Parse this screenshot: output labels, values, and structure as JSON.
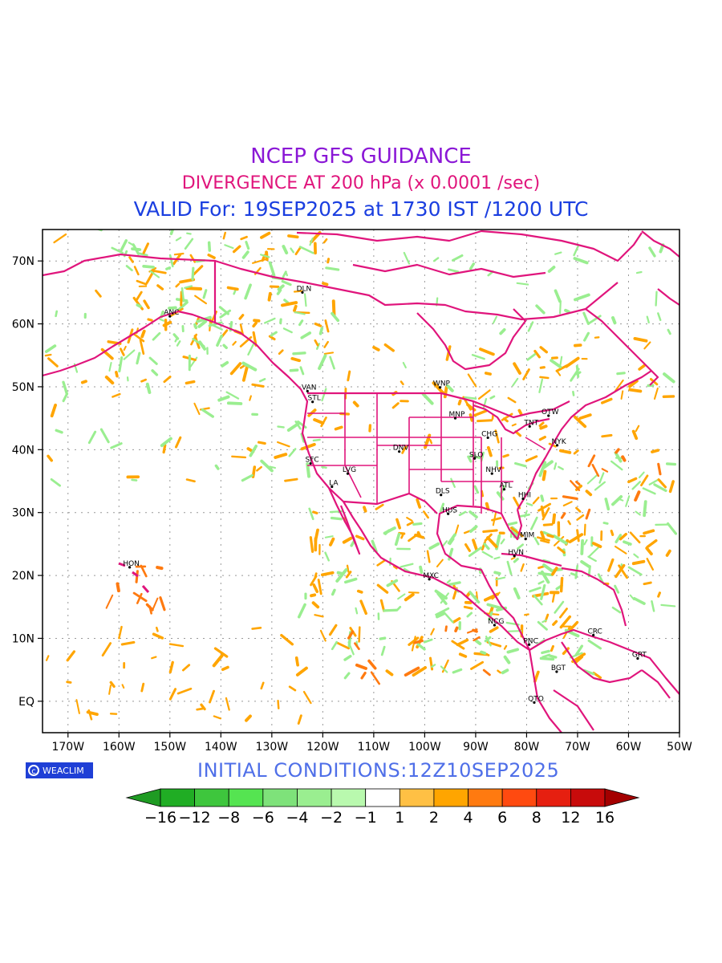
{
  "titles": {
    "line1": "NCEP GFS GUIDANCE",
    "line2": "DIVERGENCE AT 200 hPa (x 0.0001 /sec)",
    "line3": "VALID For: 19SEP2025 at 1730 IST /1200 UTC"
  },
  "initial_conditions": "INITIAL CONDITIONS:12Z10SEP2025",
  "logo_text": "WEACLIM",
  "lon_labels": [
    "170W",
    "160W",
    "150W",
    "140W",
    "130W",
    "120W",
    "110W",
    "100W",
    "90W",
    "80W",
    "70W",
    "60W",
    "50W"
  ],
  "lat_labels": [
    "70N",
    "60N",
    "50N",
    "40N",
    "30N",
    "20N",
    "10N",
    "EQ"
  ],
  "cities": [
    {
      "name": "DLN",
      "lon": -124,
      "lat": 65
    },
    {
      "name": "ANC",
      "lon": -150,
      "lat": 61.2
    },
    {
      "name": "VAN",
      "lon": -123,
      "lat": 49.3
    },
    {
      "name": "STL",
      "lon": -122,
      "lat": 47.6
    },
    {
      "name": "WNP",
      "lon": -97,
      "lat": 49.9
    },
    {
      "name": "MNP",
      "lon": -94,
      "lat": 45
    },
    {
      "name": "OTW",
      "lon": -75.7,
      "lat": 45.4
    },
    {
      "name": "TNT",
      "lon": -79.4,
      "lat": 43.7
    },
    {
      "name": "CHG",
      "lon": -87.6,
      "lat": 41.9
    },
    {
      "name": "NYK",
      "lon": -74,
      "lat": 40.7
    },
    {
      "name": "DNV",
      "lon": -105,
      "lat": 39.7
    },
    {
      "name": "SFC",
      "lon": -122.4,
      "lat": 37.8
    },
    {
      "name": "SLO",
      "lon": -90.2,
      "lat": 38.6
    },
    {
      "name": "LVG",
      "lon": -115.1,
      "lat": 36.2
    },
    {
      "name": "NHV",
      "lon": -86.8,
      "lat": 36.2
    },
    {
      "name": "LA",
      "lon": -118.2,
      "lat": 34.1
    },
    {
      "name": "ATL",
      "lon": -84.4,
      "lat": 33.7
    },
    {
      "name": "DLS",
      "lon": -96.8,
      "lat": 32.8
    },
    {
      "name": "HHI",
      "lon": -80.7,
      "lat": 32.2
    },
    {
      "name": "HUS",
      "lon": -95.4,
      "lat": 29.8
    },
    {
      "name": "MIM",
      "lon": -80.2,
      "lat": 25.8
    },
    {
      "name": "HVN",
      "lon": -82.4,
      "lat": 23.1
    },
    {
      "name": "HON",
      "lon": -157.9,
      "lat": 21.3
    },
    {
      "name": "MXC",
      "lon": -99.1,
      "lat": 19.4
    },
    {
      "name": "NCG",
      "lon": -86.3,
      "lat": 12.1
    },
    {
      "name": "CRC",
      "lon": -66.9,
      "lat": 10.5
    },
    {
      "name": "PNC",
      "lon": -79.5,
      "lat": 9
    },
    {
      "name": "GRT",
      "lon": -58.2,
      "lat": 6.8
    },
    {
      "name": "BGT",
      "lon": -74.1,
      "lat": 4.7
    },
    {
      "name": "QTO",
      "lon": -78.5,
      "lat": -0.2
    }
  ],
  "colorbar": {
    "labels": [
      "−16",
      "−12",
      "−8",
      "−6",
      "−4",
      "−2",
      "−1",
      "1",
      "2",
      "4",
      "6",
      "8",
      "12",
      "16"
    ],
    "colors": [
      "#1f9b23",
      "#20ad24",
      "#3ec63d",
      "#55e451",
      "#7ee27a",
      "#9aee90",
      "#b9f9ae",
      "#ffffff",
      "#ffc044",
      "#ffa500",
      "#ff7a10",
      "#ff4a10",
      "#e61f10",
      "#c80b0b",
      "#a40000"
    ]
  },
  "colors": {
    "coastline": "#e0157c",
    "positive": "#ffa500",
    "negative": "#9aee90"
  }
}
